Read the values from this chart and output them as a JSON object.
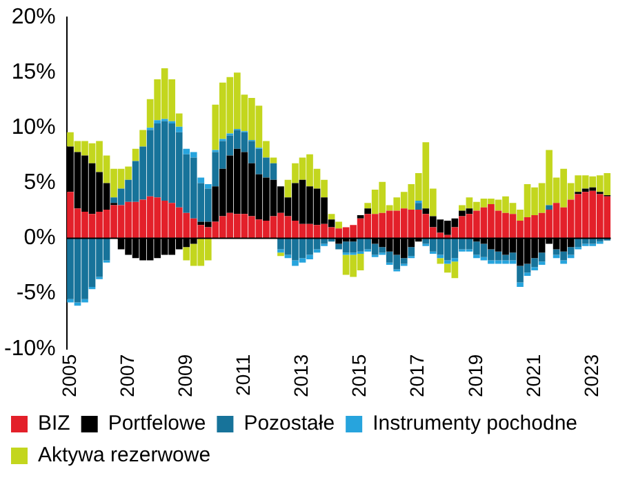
{
  "chart_data": {
    "type": "bar",
    "stacked": true,
    "legend": "bottom",
    "grid": false,
    "categories": [
      "2005",
      null,
      null,
      null,
      null,
      null,
      null,
      null,
      "2007",
      null,
      null,
      null,
      null,
      null,
      null,
      null,
      "2009",
      null,
      null,
      null,
      null,
      null,
      null,
      null,
      "2011",
      null,
      null,
      null,
      null,
      null,
      null,
      null,
      "2013",
      null,
      null,
      null,
      null,
      null,
      null,
      null,
      "2015",
      null,
      null,
      null,
      null,
      null,
      null,
      null,
      "2017",
      null,
      null,
      null,
      null,
      null,
      null,
      null,
      "2019",
      null,
      null,
      null,
      null,
      null,
      null,
      null,
      "2021",
      null,
      null,
      null,
      null,
      null,
      null,
      null,
      "2023",
      null,
      null
    ],
    "ylim": [
      -10,
      20
    ],
    "ref_lines": [
      {
        "axis": "y",
        "value": 0,
        "color": "#000000"
      }
    ],
    "yticks": [
      {
        "value": -10,
        "label": "-10%"
      },
      {
        "value": -5,
        "label": "-5%"
      },
      {
        "value": 0,
        "label": "0%"
      },
      {
        "value": 5,
        "label": "5%"
      },
      {
        "value": 10,
        "label": "10%"
      },
      {
        "value": 15,
        "label": "15%"
      },
      {
        "value": 20,
        "label": "20%"
      }
    ],
    "series": [
      {
        "name": "BIZ",
        "color": "#e3202a",
        "values": [
          4.2,
          2.7,
          2.4,
          2.2,
          2.4,
          2.6,
          3.0,
          3.0,
          3.3,
          3.3,
          3.5,
          3.8,
          3.7,
          3.4,
          3.2,
          2.8,
          2.3,
          1.8,
          1.2,
          1.0,
          1.5,
          2.0,
          2.3,
          2.2,
          2.2,
          2.0,
          1.7,
          1.6,
          2.0,
          2.3,
          2.0,
          1.6,
          1.3,
          1.3,
          1.2,
          1.3,
          1.0,
          0.9,
          1.0,
          1.2,
          1.8,
          2.2,
          2.2,
          2.3,
          2.5,
          2.5,
          2.7,
          2.6,
          2.6,
          2.2,
          1.0,
          0.5,
          0.3,
          1.0,
          2.0,
          2.2,
          2.5,
          2.8,
          3.1,
          2.5,
          2.3,
          2.2,
          1.6,
          1.9,
          2.1,
          2.3,
          2.6,
          3.2,
          2.8,
          3.5,
          4.0,
          4.2,
          4.3,
          4.0,
          3.8
        ]
      },
      {
        "name": "Portfelowe",
        "color": "#000000",
        "values": [
          4.1,
          5.1,
          5.1,
          4.6,
          3.6,
          2.4,
          0.2,
          -1.0,
          -1.5,
          -1.8,
          -2.0,
          -2.0,
          -1.8,
          -1.5,
          -1.5,
          -1.0,
          -0.8,
          -0.5,
          0.3,
          0.5,
          3.2,
          4.3,
          5.2,
          5.9,
          5.6,
          4.8,
          4.1,
          3.9,
          3.3,
          2.4,
          1.7,
          3.4,
          4.0,
          3.4,
          3.3,
          2.4,
          0.7,
          -0.5,
          -0.3,
          -0.3,
          0.3,
          0.5,
          -0.5,
          -0.8,
          -1.2,
          -1.5,
          -1.8,
          -0.8,
          -0.3,
          0.5,
          1.0,
          1.2,
          1.3,
          0.8,
          0.5,
          0.5,
          -0.3,
          -0.5,
          -1.0,
          -1.2,
          -1.5,
          -1.3,
          -2.5,
          -2.3,
          -1.8,
          -1.3,
          -0.5,
          -1.0,
          -1.2,
          -0.8,
          0.2,
          0.3,
          0.3,
          0.2,
          0.1
        ]
      },
      {
        "name": "Pozostałe",
        "color": "#17739a",
        "values": [
          -5.5,
          -5.8,
          -5.5,
          -4.4,
          -3.5,
          -2.0,
          0.5,
          1.5,
          2.0,
          3.7,
          4.8,
          6.0,
          6.7,
          7.2,
          7.2,
          6.8,
          5.3,
          5.5,
          3.5,
          3.0,
          3.1,
          2.5,
          1.8,
          1.7,
          1.8,
          2.0,
          2.3,
          1.8,
          1.5,
          -1.0,
          -1.5,
          -2.0,
          -1.8,
          -1.5,
          -1.0,
          -0.5,
          -0.3,
          -0.5,
          -1.0,
          -1.0,
          -1.2,
          -1.0,
          -1.0,
          -0.5,
          -1.0,
          -1.3,
          -0.5,
          -0.8,
          0.6,
          -0.5,
          -1.2,
          -1.5,
          -2.0,
          -1.8,
          -1.0,
          -1.0,
          -1.2,
          -1.2,
          -1.0,
          -0.8,
          -0.5,
          -0.7,
          -1.5,
          -0.8,
          -0.8,
          -0.8,
          0.4,
          -0.5,
          -0.8,
          -0.7,
          -0.8,
          -0.5,
          -0.5,
          -0.3,
          -0.2
        ]
      },
      {
        "name": "Instrumenty pochodne",
        "color": "#27a4dd",
        "values": [
          -0.3,
          -0.3,
          -0.3,
          -0.2,
          -0.2,
          -0.2,
          0,
          0,
          0,
          0,
          0,
          0.2,
          0.3,
          0.2,
          0.2,
          0.5,
          0.5,
          0.5,
          0.5,
          0.4,
          0.2,
          0.2,
          0.2,
          0.1,
          0.1,
          0.1,
          0.1,
          0,
          0,
          -0.3,
          -0.3,
          -0.5,
          -0.4,
          -0.4,
          -0.3,
          -0.2,
          0,
          0,
          -0.2,
          -0.2,
          -0.2,
          -0.2,
          -0.2,
          -0.2,
          -0.2,
          -0.2,
          -0.2,
          -0.2,
          0.2,
          -0.2,
          -0.2,
          -0.3,
          -0.3,
          -0.3,
          -0.2,
          -0.2,
          -0.3,
          -0.3,
          -0.3,
          -0.3,
          -0.3,
          -0.3,
          -0.4,
          -0.3,
          -0.3,
          -0.3,
          0,
          -0.3,
          -0.3,
          -0.3,
          -0.2,
          -0.2,
          -0.2,
          -0.2,
          0
        ]
      },
      {
        "name": "Aktywa rezerwowe",
        "color": "#c3d61e",
        "values": [
          1.3,
          1.0,
          1.3,
          1.8,
          2.8,
          2.5,
          2.6,
          1.8,
          1.2,
          1.1,
          1.5,
          2.6,
          3.7,
          4.6,
          3.8,
          1.2,
          -1.2,
          -2.0,
          -2.5,
          -2.0,
          4.1,
          5.1,
          5.1,
          5.1,
          3.3,
          3.8,
          3.8,
          1.5,
          0.5,
          -0.3,
          1.6,
          1.8,
          2.0,
          2.9,
          1.8,
          1.6,
          0.5,
          0.6,
          -1.8,
          -2.0,
          -1.5,
          0.5,
          2.2,
          2.8,
          0.5,
          1.2,
          1.5,
          2.3,
          2.5,
          6.0,
          2.5,
          -0.5,
          -0.8,
          -1.5,
          0.5,
          1.0,
          0.8,
          0.8,
          0.5,
          1.0,
          1.5,
          1.0,
          1.0,
          3.0,
          2.5,
          2.7,
          5.0,
          2.3,
          3.5,
          1.5,
          1.5,
          1.2,
          1.0,
          1.5,
          2.0
        ]
      }
    ]
  }
}
